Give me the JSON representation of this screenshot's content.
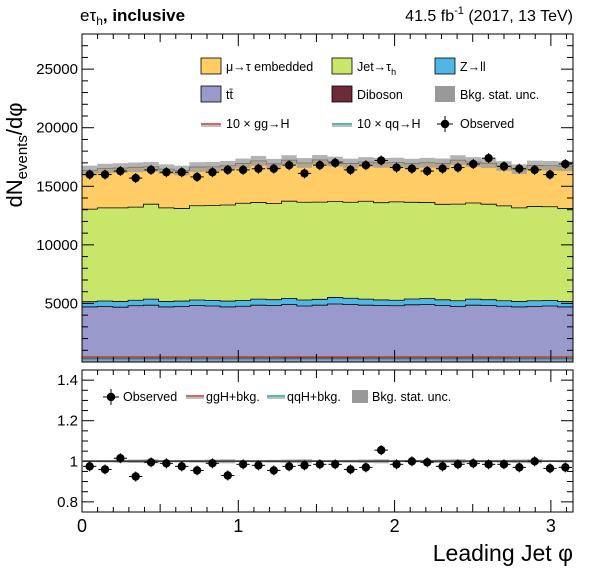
{
  "header": {
    "channel_e": "e",
    "channel_tau": "τ",
    "channel_h": "h",
    "channel_rest": ", inclusive",
    "lumi_value": "41.5 fb",
    "lumi_exp": "-1",
    "lumi_rest": " (2017, 13 TeV)"
  },
  "chart_data": {
    "type": "bar",
    "stacked": true,
    "x_bins": {
      "min": 0,
      "max": 3.14159,
      "count": 32
    },
    "xlabel": "Leading Jet  φ",
    "ylabel_main": "dN",
    "ylabel_sub": "events",
    "ylabel_tail": "/dφ",
    "ylim": [
      0,
      28000
    ],
    "yticks": [
      "5000",
      "10000",
      "15000",
      "20000",
      "25000"
    ],
    "xticks": [
      "0",
      "1",
      "2",
      "3"
    ],
    "series": [
      {
        "name": "tt̄",
        "color": "#9999cc",
        "values": [
          4700,
          4750,
          4680,
          4800,
          4850,
          4700,
          4750,
          4820,
          4780,
          4700,
          4760,
          4850,
          4820,
          4900,
          4780,
          4850,
          4950,
          4900,
          4850,
          4820,
          4800,
          4880,
          4900,
          4820,
          4750,
          4850,
          4820,
          4760,
          4700,
          4750,
          4780,
          4700
        ]
      },
      {
        "name": "Z→ll",
        "color": "#4fb6e5",
        "values": [
          450,
          460,
          480,
          470,
          520,
          460,
          450,
          470,
          480,
          500,
          490,
          520,
          500,
          530,
          510,
          500,
          560,
          540,
          520,
          480,
          470,
          500,
          510,
          490,
          480,
          520,
          500,
          470,
          460,
          480,
          470,
          460
        ]
      },
      {
        "name": "Jet→τ_h",
        "color": "#c8e66a",
        "values": [
          7900,
          7950,
          8000,
          7950,
          8100,
          8000,
          7900,
          8050,
          8100,
          8200,
          8300,
          8250,
          8200,
          8300,
          8350,
          8300,
          8200,
          8200,
          8350,
          8300,
          8400,
          8250,
          8200,
          8150,
          8250,
          8200,
          8150,
          8100,
          8000,
          8050,
          8000,
          7950
        ]
      },
      {
        "name": "μ→τ embedded",
        "color": "#ffcc66",
        "values": [
          3300,
          3350,
          3400,
          3400,
          3200,
          3300,
          3250,
          3300,
          3300,
          3350,
          3400,
          3550,
          3400,
          3500,
          3350,
          3600,
          3400,
          3300,
          3350,
          3400,
          3350,
          3300,
          3400,
          3500,
          3750,
          3500,
          3500,
          3400,
          3300,
          3500,
          3500,
          3600
        ]
      }
    ],
    "diboson": {
      "name": "Diboson",
      "color": "#6e2a36",
      "values": [
        280,
        280,
        280,
        280,
        300,
        300,
        300,
        280,
        280,
        280,
        300,
        300,
        300,
        320,
        320,
        320,
        320,
        320,
        300,
        300,
        300,
        300,
        300,
        300,
        300,
        300,
        300,
        300,
        280,
        280,
        280,
        280
      ]
    },
    "observed": {
      "name": "Observed",
      "values": [
        16000,
        16000,
        16300,
        15700,
        16400,
        16200,
        16200,
        15800,
        16200,
        16400,
        16400,
        16500,
        16500,
        16800,
        16100,
        16800,
        17000,
        16400,
        16800,
        17200,
        16600,
        16500,
        16300,
        16500,
        16600,
        16900,
        17400,
        16700,
        16500,
        16400,
        16000,
        16900
      ]
    },
    "legend": {
      "embedded": "μ→τ embedded",
      "jet_pre": "Jet→τ",
      "jet_sub": "h",
      "zll": "Z→ll",
      "ttbar": "tt̄",
      "diboson": "Diboson",
      "bkg_unc": "Bkg. stat. unc.",
      "ggh": "10 × gg→H",
      "qqh": "10 × qq→H",
      "observed": "Observed"
    },
    "ratio": {
      "ylim": [
        0.75,
        1.45
      ],
      "yticks": [
        "0.8",
        "1",
        "1.2",
        "1.4"
      ],
      "values": [
        0.975,
        0.96,
        1.015,
        0.925,
        0.995,
        0.99,
        0.975,
        0.955,
        0.99,
        0.93,
        0.985,
        0.98,
        0.955,
        0.975,
        0.98,
        0.985,
        0.985,
        0.96,
        0.97,
        1.055,
        0.985,
        1.0,
        0.995,
        0.975,
        0.985,
        0.99,
        0.985,
        0.985,
        0.97,
        1.0,
        0.965,
        0.97
      ],
      "legend": {
        "observed": "Observed",
        "ggh": "ggH+bkg.",
        "qqh": "qqH+bkg.",
        "unc": "Bkg. stat. unc."
      }
    },
    "colors": {
      "ggh": "#c0392b",
      "qqh": "#1aa39a",
      "unc": "#999999"
    }
  }
}
